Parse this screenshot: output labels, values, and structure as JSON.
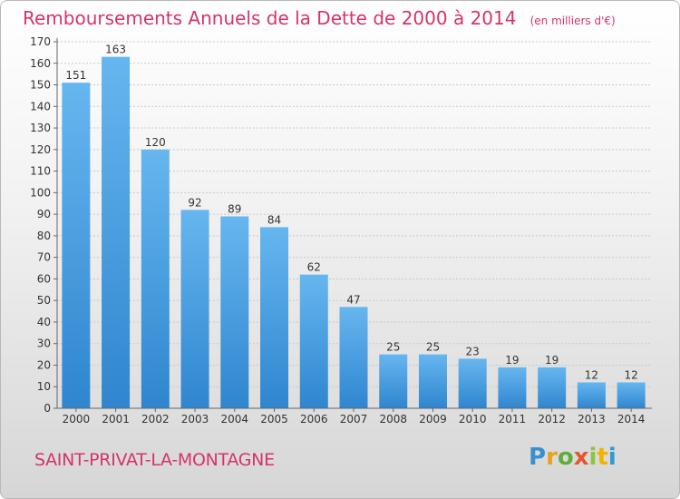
{
  "title": "Remboursements Annuels de la Dette de 2000 à 2014",
  "unit_note": "(en milliers d'€)",
  "commune": "SAINT-PRIVAT-LA-MONTAGNE",
  "logo_text": "Proxiti",
  "colors": {
    "bar_light": "#62b3ee",
    "bar_dark": "#2f86cf",
    "title": "#d6336c"
  },
  "chart_data": {
    "type": "bar",
    "title": "Remboursements Annuels de la Dette de 2000 à 2014",
    "categories": [
      "2000",
      "2001",
      "2002",
      "2003",
      "2004",
      "2005",
      "2006",
      "2007",
      "2008",
      "2009",
      "2010",
      "2011",
      "2012",
      "2013",
      "2014"
    ],
    "values": [
      151,
      163,
      120,
      92,
      89,
      84,
      62,
      47,
      25,
      25,
      23,
      19,
      19,
      12,
      12
    ],
    "ylim": [
      0,
      170
    ],
    "yticks": [
      0,
      10,
      20,
      30,
      40,
      50,
      60,
      70,
      80,
      90,
      100,
      110,
      120,
      130,
      140,
      150,
      160,
      170
    ],
    "grid": true,
    "data_labels": true
  }
}
